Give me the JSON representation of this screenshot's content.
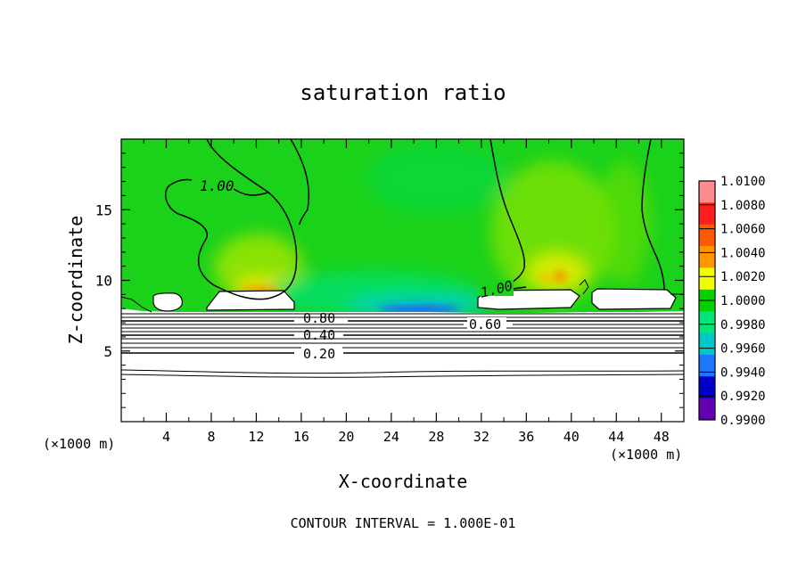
{
  "chart_data": {
    "type": "heatmap",
    "title": "saturation ratio",
    "xlabel": "X-coordinate",
    "ylabel": "Z-coordinate",
    "x_unit_label_left": "(×1000 m)",
    "x_unit_label_right": "(×1000 m)",
    "footer": "CONTOUR INTERVAL = 1.000E-01",
    "xlim": [
      0,
      50
    ],
    "ylim": [
      0,
      20
    ],
    "x_ticks": [
      "4",
      "8",
      "12",
      "16",
      "20",
      "24",
      "28",
      "32",
      "36",
      "40",
      "44",
      "48"
    ],
    "y_ticks": [
      "5",
      "10",
      "15"
    ],
    "contour_labels": [
      "1.00",
      "1.00",
      "0.80",
      "0.60",
      "0.40",
      "0.20"
    ],
    "colorbar": {
      "labels": [
        "1.0100",
        "1.0080",
        "1.0060",
        "1.0040",
        "1.0020",
        "1.0000",
        "0.9980",
        "0.9960",
        "0.9940",
        "0.9920",
        "0.9900"
      ],
      "colors": [
        "#ff8c8c",
        "#ff1e1e",
        "#ff5a00",
        "#ff9600",
        "#f0ff00",
        "#00d200",
        "#00e678",
        "#00c8c8",
        "#1e78ff",
        "#0000c8",
        "#6400b4"
      ]
    }
  }
}
